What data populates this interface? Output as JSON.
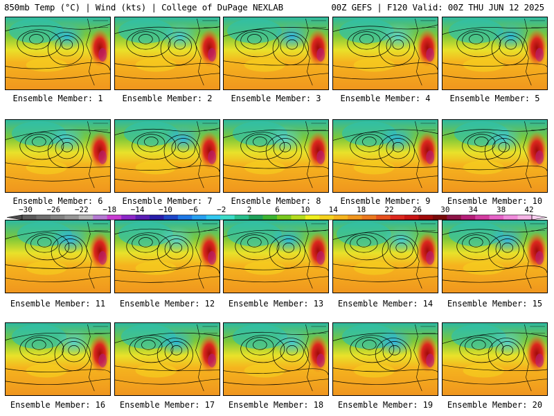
{
  "header": {
    "title": "850mb Temp (°C) | Wind (kts) | College of DuPage NEXLAB",
    "run_info": "00Z GEFS | F120 Valid: 00Z THU JUN 12 2025"
  },
  "members": [
    {
      "label": "Ensemble Member: 1"
    },
    {
      "label": "Ensemble Member: 2"
    },
    {
      "label": "Ensemble Member: 3"
    },
    {
      "label": "Ensemble Member: 4"
    },
    {
      "label": "Ensemble Member: 5"
    },
    {
      "label": "Ensemble Member: 6"
    },
    {
      "label": "Ensemble Member: 7"
    },
    {
      "label": "Ensemble Member: 8"
    },
    {
      "label": "Ensemble Member: 9"
    },
    {
      "label": "Ensemble Member: 10"
    },
    {
      "label": "Ensemble Member: 11"
    },
    {
      "label": "Ensemble Member: 12"
    },
    {
      "label": "Ensemble Member: 13"
    },
    {
      "label": "Ensemble Member: 14"
    },
    {
      "label": "Ensemble Member: 15"
    },
    {
      "label": "Ensemble Member: 16"
    },
    {
      "label": "Ensemble Member: 17"
    },
    {
      "label": "Ensemble Member: 18"
    },
    {
      "label": "Ensemble Member: 19"
    },
    {
      "label": "Ensemble Member: 20"
    }
  ],
  "colorbar": {
    "ticks": [
      "-30",
      "-26",
      "-22",
      "-18",
      "-14",
      "-10",
      "-6",
      "-2",
      "2",
      "6",
      "10",
      "14",
      "18",
      "22",
      "26",
      "30",
      "34",
      "38",
      "42"
    ],
    "colors": [
      "#5a5a5a",
      "#6e6e6e",
      "#828282",
      "#969696",
      "#b4b4b4",
      "#b47ad2",
      "#c83cd2",
      "#8c28c8",
      "#5a1eb4",
      "#281eaa",
      "#1e46c8",
      "#1e78e6",
      "#28a0f0",
      "#32c8f0",
      "#3cdcc8",
      "#28be8c",
      "#1ea05a",
      "#3cb432",
      "#78c81e",
      "#b4dc1e",
      "#f0f01e",
      "#f5d21e",
      "#f5b41e",
      "#f0961e",
      "#eb781e",
      "#e6501e",
      "#dc281e",
      "#c81414",
      "#a00a0a",
      "#780a0a",
      "#8c1446",
      "#b41e78",
      "#d23ca0",
      "#e664c8",
      "#f08cdc",
      "#f5b4e6"
    ]
  }
}
